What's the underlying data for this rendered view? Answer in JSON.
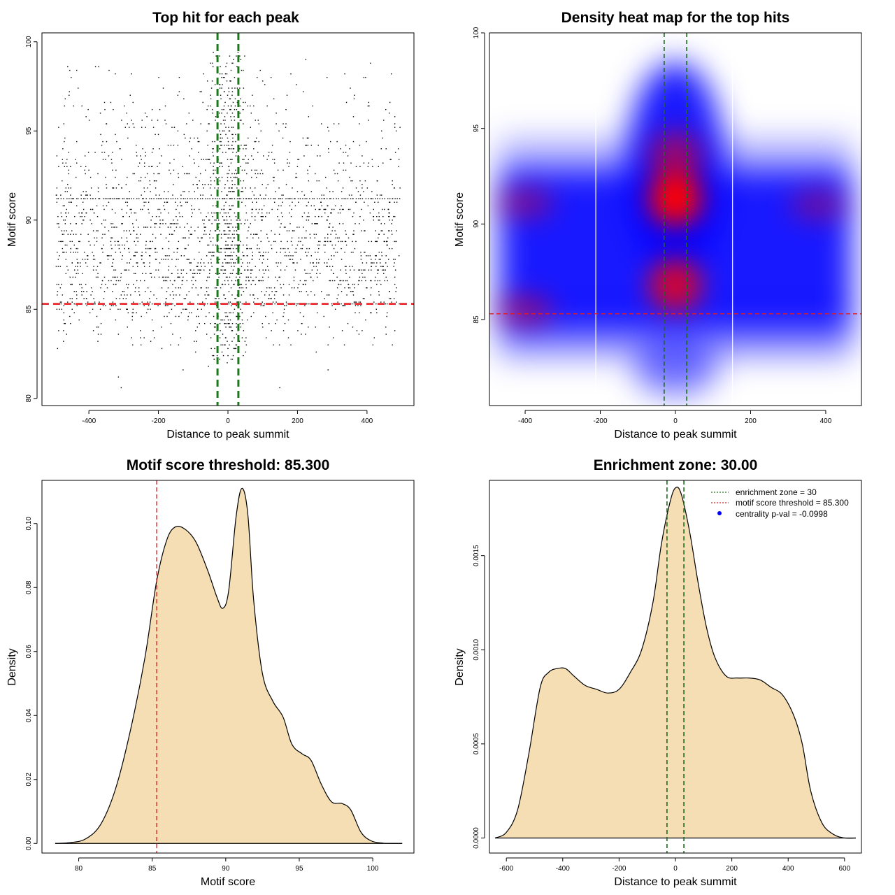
{
  "colors": {
    "threshold": "#e41a1c",
    "zone": "#1a7a1a",
    "zone_dark": "#1a6a1a",
    "fill": "#f5deb3",
    "point": "#000000",
    "heat_low": "#ffffff",
    "heat_mid": "#0000ff",
    "heat_high": "#ff0000"
  },
  "chart_data": [
    {
      "id": "scatter",
      "type": "scatter",
      "title": "Top hit for each peak",
      "xlabel": "Distance to peak summit",
      "ylabel": "Motif score",
      "xlim": [
        -535,
        535
      ],
      "ylim": [
        79.6,
        100.5
      ],
      "xticks": [
        -400,
        -200,
        0,
        200,
        400
      ],
      "yticks": [
        80,
        85,
        90,
        95,
        100
      ],
      "threshold_y": 85.3,
      "zone_x": [
        -30,
        30
      ],
      "x_range": [
        -495,
        495
      ],
      "n_points": 2600,
      "band_y": 91.2,
      "bottom_band_y": 85.3
    },
    {
      "id": "heatmap",
      "type": "heatmap",
      "title": "Density heat map for the top hits",
      "xlabel": "Distance to peak summit",
      "ylabel": "Motif score",
      "xlim": [
        -495,
        495
      ],
      "ylim": [
        80.5,
        100
      ],
      "xticks": [
        -400,
        -200,
        0,
        200,
        400
      ],
      "yticks": [
        85,
        90,
        95,
        100
      ],
      "threshold_y": 85.3,
      "zone_x": [
        -30,
        30
      ],
      "white_lines_x": [
        -212,
        152
      ],
      "hotspots": [
        {
          "x": 0,
          "y": 91.3,
          "weight": 1.0
        },
        {
          "x": 0,
          "y": 86.8,
          "weight": 0.8
        },
        {
          "x": 0,
          "y": 93.5,
          "weight": 0.55
        },
        {
          "x": -400,
          "y": 85.5,
          "weight": 0.45
        },
        {
          "x": -400,
          "y": 91.1,
          "weight": 0.4
        },
        {
          "x": 380,
          "y": 91.0,
          "weight": 0.35
        }
      ]
    },
    {
      "id": "score-density",
      "type": "area",
      "title": "Motif score threshold: 85.300",
      "xlabel": "Motif score",
      "ylabel": "Density",
      "xlim": [
        77.5,
        102.8
      ],
      "ylim": [
        -0.003,
        0.1135
      ],
      "xticks": [
        80,
        85,
        90,
        95,
        100
      ],
      "yticks": [
        0.0,
        0.02,
        0.04,
        0.06,
        0.08,
        0.1
      ],
      "ytick_labels": [
        "0.00",
        "0.02",
        "0.04",
        "0.06",
        "0.08",
        "0.10"
      ],
      "threshold_x": 85.3,
      "x": [
        78.4,
        79.5,
        80.5,
        81.5,
        82.5,
        83.5,
        84.5,
        85.3,
        86.0,
        86.6,
        87.3,
        88.0,
        88.8,
        89.4,
        89.8,
        90.2,
        90.7,
        91.1,
        91.5,
        91.9,
        92.5,
        93.2,
        93.9,
        94.5,
        95.2,
        95.8,
        96.5,
        97.2,
        97.9,
        98.5,
        99.2,
        99.9,
        100.7,
        101.5,
        102.0
      ],
      "y": [
        0.0,
        0.0003,
        0.0015,
        0.006,
        0.017,
        0.035,
        0.058,
        0.082,
        0.095,
        0.099,
        0.098,
        0.094,
        0.085,
        0.077,
        0.0735,
        0.079,
        0.102,
        0.111,
        0.103,
        0.076,
        0.053,
        0.0445,
        0.0395,
        0.031,
        0.028,
        0.026,
        0.0185,
        0.013,
        0.0125,
        0.0105,
        0.0035,
        0.0008,
        0.0001,
        0.0,
        0.0
      ]
    },
    {
      "id": "distance-density",
      "type": "area",
      "title": "Enrichment zone: 30.00",
      "xlabel": "Distance to peak summit",
      "ylabel": "Density",
      "xlim": [
        -660,
        660
      ],
      "ylim": [
        -8e-05,
        0.0019
      ],
      "xticks": [
        -600,
        -400,
        -200,
        0,
        200,
        400,
        600
      ],
      "yticks": [
        0.0,
        0.0005,
        0.001,
        0.0015
      ],
      "ytick_labels": [
        "0.0000",
        "0.0005",
        "0.0010",
        "0.0015"
      ],
      "zone_x": [
        -30,
        30
      ],
      "x": [
        -640,
        -600,
        -560,
        -520,
        -480,
        -450,
        -420,
        -390,
        -360,
        -320,
        -280,
        -240,
        -200,
        -160,
        -120,
        -80,
        -50,
        -20,
        0,
        20,
        50,
        80,
        110,
        140,
        180,
        220,
        260,
        300,
        340,
        380,
        420,
        450,
        480,
        520,
        560,
        600,
        640
      ],
      "y": [
        0.0,
        3e-05,
        0.00015,
        0.00045,
        0.0008,
        0.00088,
        0.0009,
        0.0009,
        0.00086,
        0.00081,
        0.00079,
        0.00077,
        0.00079,
        0.00088,
        0.001,
        0.00125,
        0.00156,
        0.00178,
        0.00186,
        0.00183,
        0.00163,
        0.00136,
        0.00112,
        0.00096,
        0.00086,
        0.00085,
        0.00085,
        0.00084,
        0.0008,
        0.00076,
        0.00065,
        0.0005,
        0.00025,
        8e-05,
        2e-05,
        0.0,
        0.0
      ],
      "legend": [
        {
          "label": "enrichment zone = 30",
          "style": "dotted",
          "color": "#1a7a1a"
        },
        {
          "label": "motif score threshold = 85.300",
          "style": "dotted",
          "color": "#e41a1c"
        },
        {
          "label": "centrality p-val = -0.0998",
          "style": "point",
          "color": "#0000ff"
        }
      ]
    }
  ]
}
